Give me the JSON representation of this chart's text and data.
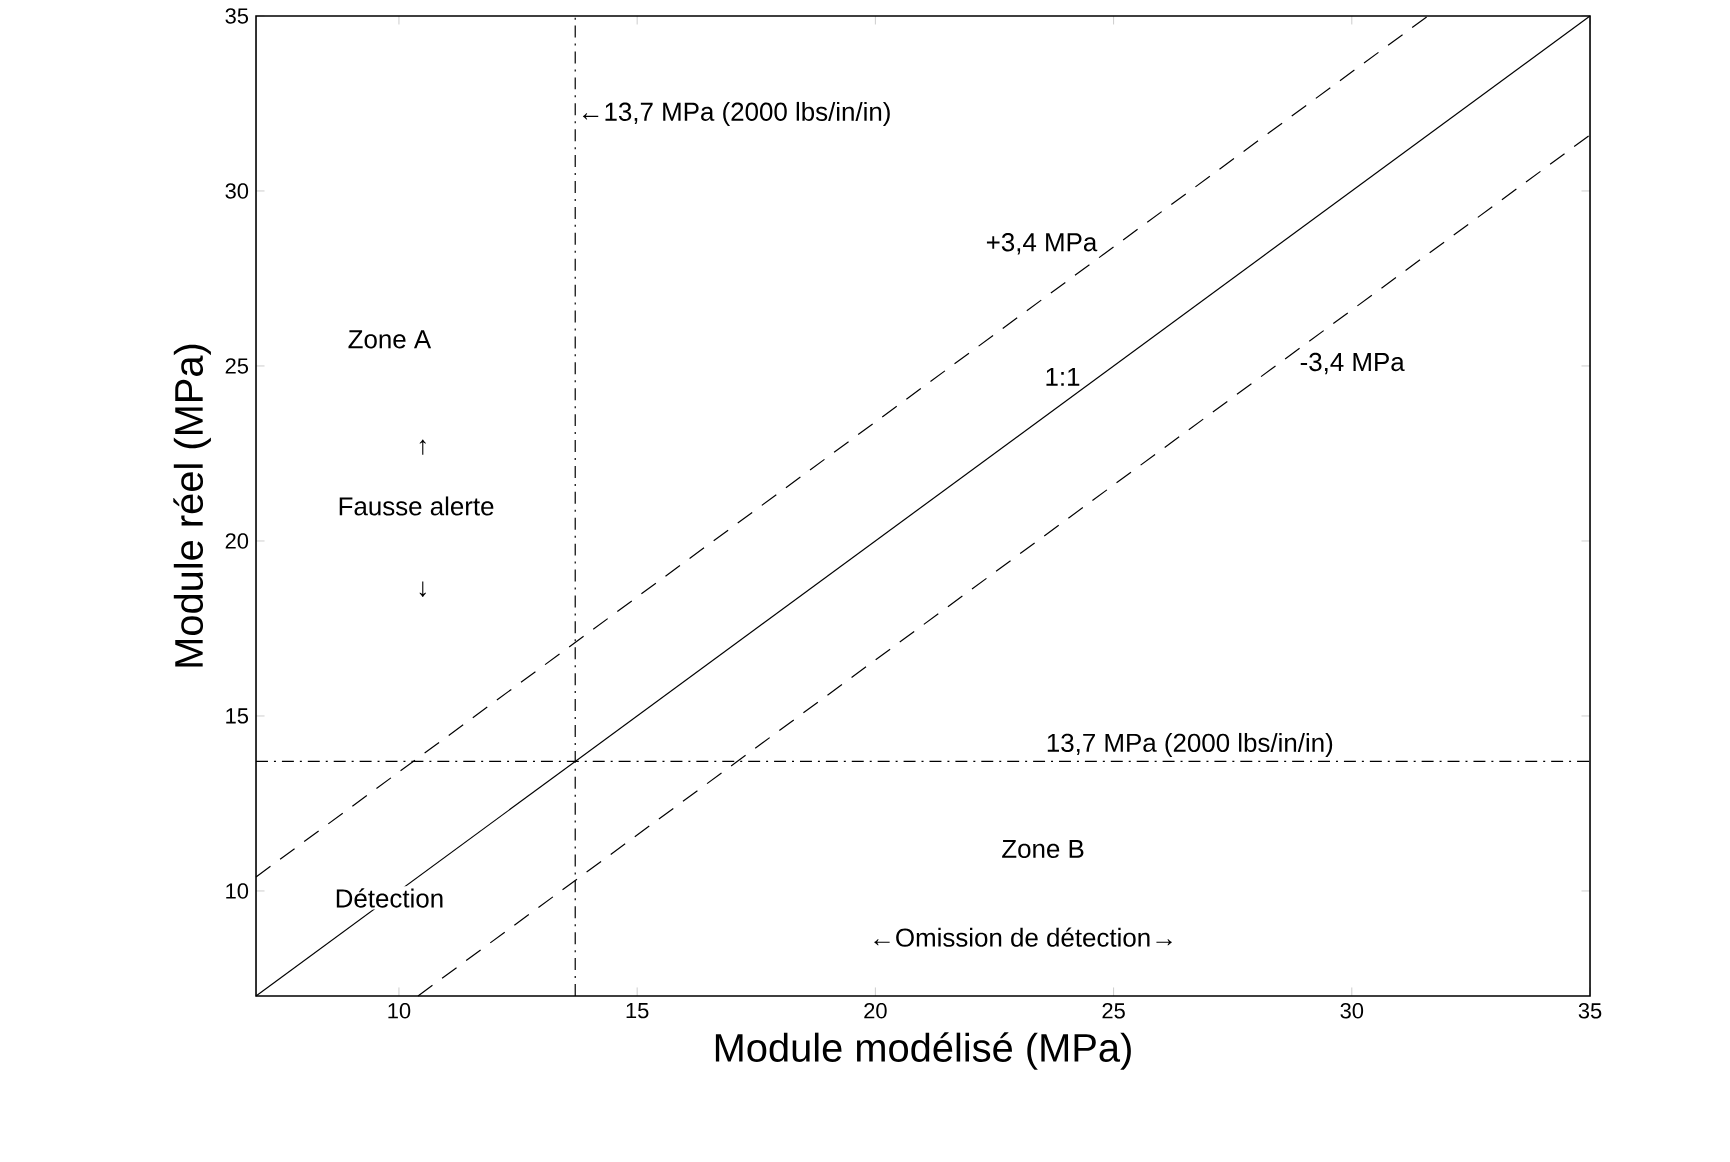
{
  "chart_data": {
    "type": "line",
    "xlabel": "Module modélisé (MPa)",
    "ylabel": "Module réel (MPa)",
    "xlim": [
      7,
      35
    ],
    "ylim": [
      7,
      35
    ],
    "xticks": [
      10,
      15,
      20,
      25,
      30,
      35
    ],
    "yticks": [
      10,
      15,
      20,
      25,
      30,
      35
    ],
    "grid": false,
    "marker": "none",
    "series": [
      {
        "name": "1:1",
        "color": "#000000",
        "line_style": "solid",
        "x": [
          7,
          35
        ],
        "values": [
          7,
          35
        ]
      },
      {
        "name": "+3,4 MPa",
        "color": "#000000",
        "line_style": "dashed",
        "x": [
          7,
          31.6
        ],
        "values": [
          10.4,
          35
        ]
      },
      {
        "name": "-3,4 MPa",
        "color": "#000000",
        "line_style": "dashed",
        "x": [
          10.4,
          35
        ],
        "values": [
          7,
          31.6
        ]
      }
    ],
    "ref_lines": [
      {
        "axis": "x",
        "value": 13.7,
        "label": "←13,7 MPa (2000 lbs/in/in)",
        "line_style": "dashdot",
        "color": "#000000"
      },
      {
        "axis": "y",
        "value": 13.7,
        "label": "13,7 MPa (2000 lbs/in/in)",
        "line_style": "dashdot",
        "color": "#000000"
      }
    ],
    "annotations": [
      "Zone A",
      "↑",
      "Fausse alerte",
      "↓",
      "Détection",
      "Zone B",
      "←Omission de détection→"
    ]
  }
}
